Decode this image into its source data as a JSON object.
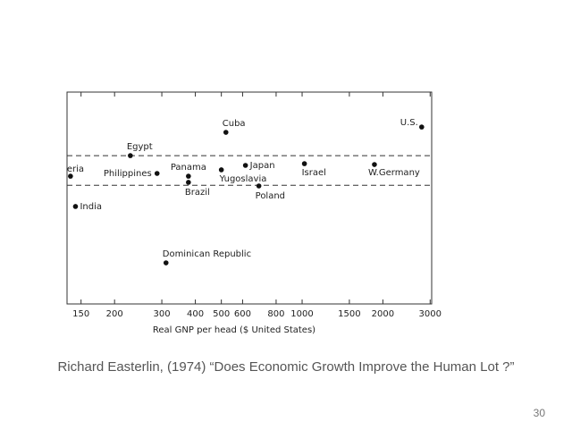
{
  "chart_data": {
    "type": "scatter",
    "xlabel": "Real GNP per head ($ United States)",
    "xscale": "log",
    "xlim": [
      133,
      3040
    ],
    "ylim": [
      0,
      100
    ],
    "xticks": [
      150,
      200,
      300,
      400,
      500,
      600,
      800,
      1000,
      1500,
      2000,
      3000
    ],
    "reference_lines": [
      70,
      56
    ],
    "color": "#111111",
    "labels": [
      "Cuba",
      "U.S.",
      "Egypt",
      "eria",
      "Philippines",
      "Panama",
      "Brazil",
      "Yugoslavia",
      "Japan",
      "Poland",
      "Israel",
      "W.Germany",
      "India",
      "Dominican Republic"
    ],
    "x": [
      520,
      2790,
      229,
      137,
      288,
      377,
      377,
      500,
      615,
      690,
      1020,
      1860,
      143,
      311
    ],
    "y": [
      81,
      83.5,
      70,
      60.3,
      61.6,
      60.3,
      57.4,
      63.3,
      65.4,
      55.7,
      66.2,
      65.8,
      46,
      19.4
    ]
  },
  "caption": "Richard Easterlin, (1974) “Does Economic Growth Improve the Human Lot ?”",
  "page_number": 30
}
